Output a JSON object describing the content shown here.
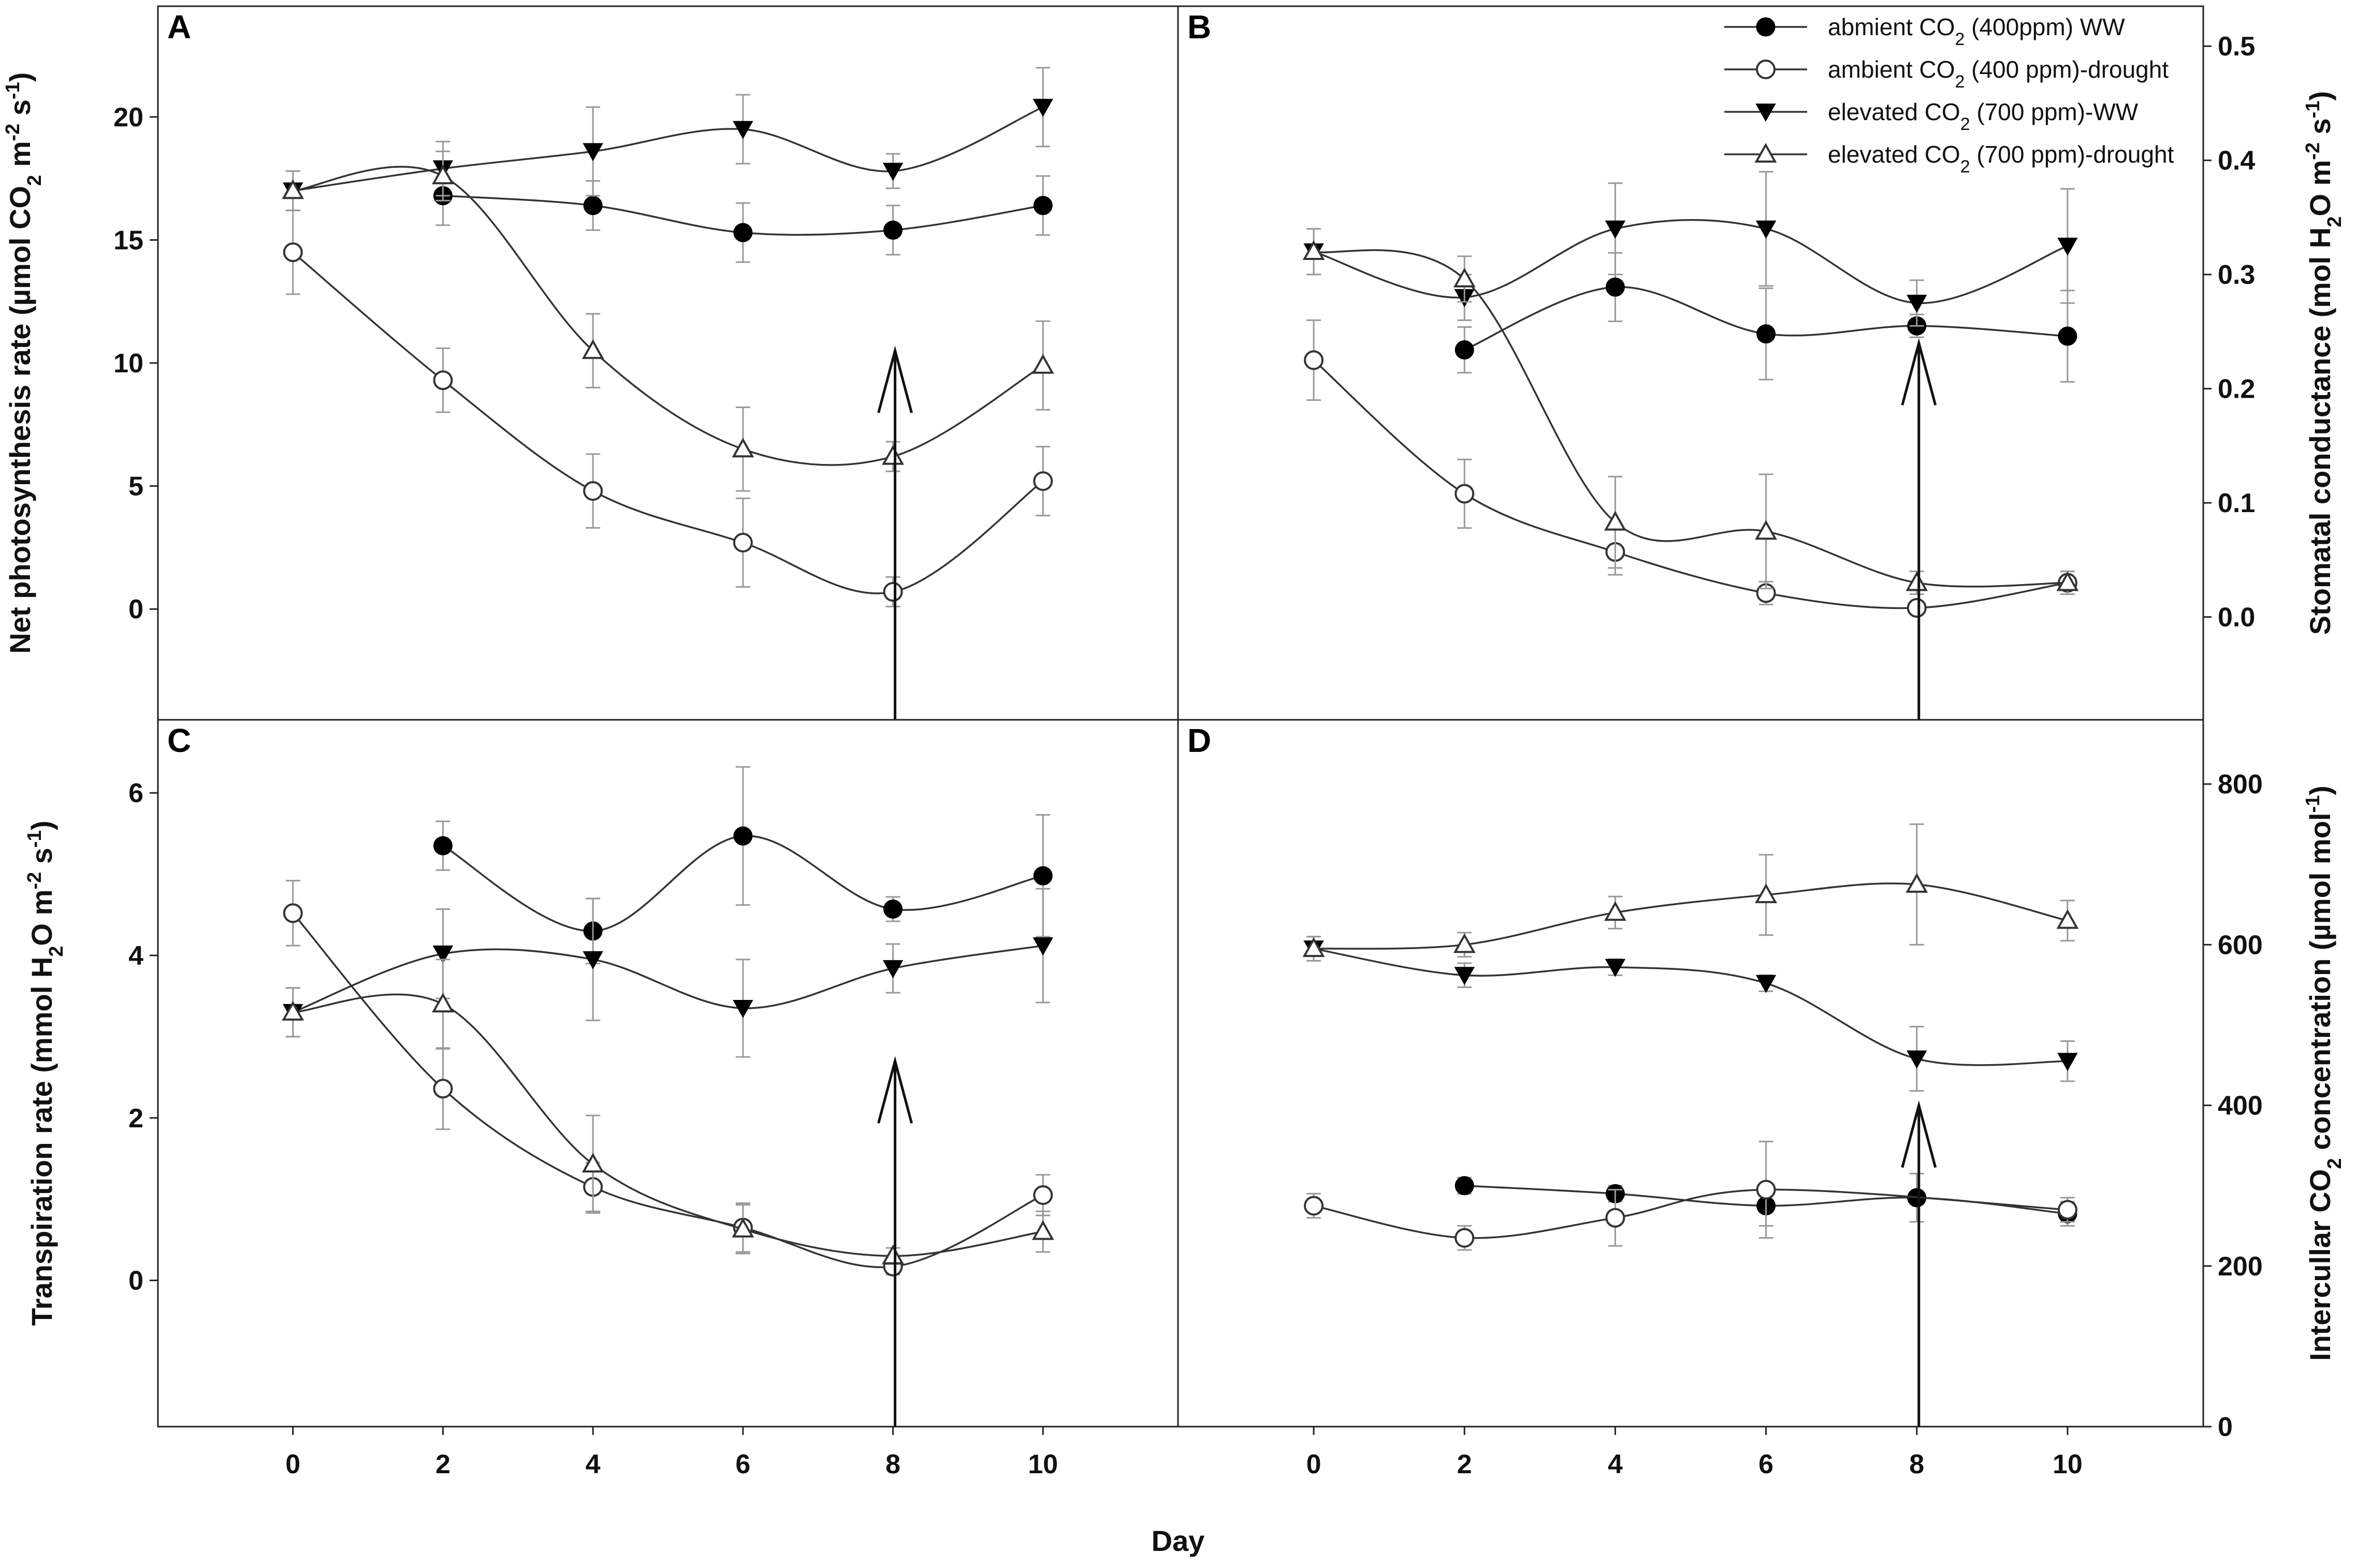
{
  "figure": {
    "shared_xlabel": "Day",
    "legend": [
      {
        "marker": "filled-circle",
        "parts": [
          "abmient CO",
          "2",
          " (400ppm) WW"
        ]
      },
      {
        "marker": "open-circle",
        "parts": [
          "ambient CO",
          "2",
          " (400 ppm)-drought"
        ]
      },
      {
        "marker": "filled-triangle-down",
        "parts": [
          "elevated CO",
          "2",
          " (700 ppm)-WW"
        ]
      },
      {
        "marker": "open-triangle-up",
        "parts": [
          "elevated CO",
          "2",
          " (700 ppm)-drought"
        ]
      }
    ],
    "colors": {
      "line": "#333333",
      "error": "#999999",
      "frame": "#222222",
      "arrow": "#111111"
    }
  },
  "chart_data": [
    {
      "panel": "A",
      "type": "line",
      "ylabel_parts": [
        "Net photosynthesis rate (µmol CO",
        "2",
        " m",
        "-2",
        " s",
        "-1",
        ")"
      ],
      "ylabel_side": "left",
      "x": [
        0,
        2,
        4,
        6,
        8,
        10
      ],
      "xlim": [
        -1.8,
        11.8
      ],
      "ylim": [
        -4.5,
        24.5
      ],
      "yticks": [
        0,
        5,
        10,
        15,
        20
      ],
      "xticks": [],
      "arrow_day": 8,
      "arrow_from": -4.5,
      "arrow_to": 10.5,
      "series": [
        {
          "name": "abmient CO2 (400ppm) WW",
          "marker": "filled-circle",
          "values": [
            null,
            16.8,
            16.4,
            15.3,
            15.4,
            16.4
          ],
          "errors": [
            null,
            1.2,
            1.0,
            1.2,
            1.0,
            1.2
          ]
        },
        {
          "name": "ambient CO2 (400 ppm)-drought",
          "marker": "open-circle",
          "values": [
            14.5,
            9.3,
            4.8,
            2.7,
            0.7,
            5.2
          ],
          "errors": [
            1.7,
            1.3,
            1.5,
            1.8,
            0.6,
            1.4
          ]
        },
        {
          "name": "elevated CO2 (700 ppm)-WW",
          "marker": "filled-triangle-down",
          "values": [
            17.0,
            17.9,
            18.6,
            19.5,
            17.8,
            20.4
          ],
          "errors": [
            0.8,
            1.1,
            1.8,
            1.4,
            0.7,
            1.6
          ]
        },
        {
          "name": "elevated CO2 (700 ppm)-drought",
          "marker": "open-triangle-up",
          "values": [
            17.0,
            17.6,
            10.5,
            6.5,
            6.2,
            9.9
          ],
          "errors": [
            0.8,
            1.0,
            1.5,
            1.7,
            0.6,
            1.8
          ]
        }
      ]
    },
    {
      "panel": "B",
      "type": "line",
      "ylabel_parts": [
        "Stomatal conductance (mol H",
        "2",
        "O m",
        "-2",
        " s",
        "-1",
        ")"
      ],
      "ylabel_side": "right",
      "x": [
        0,
        2,
        4,
        6,
        8,
        10
      ],
      "xlim": [
        -1.8,
        11.8
      ],
      "ylim": [
        -0.09,
        0.535
      ],
      "yticks": [
        0.0,
        0.1,
        0.2,
        0.3,
        0.4,
        0.5
      ],
      "ytick_labels": [
        "0.0",
        "0.1",
        "0.2",
        "0.3",
        "0.4",
        "0.5"
      ],
      "xticks": [],
      "arrow_day": 8,
      "arrow_from": -0.09,
      "arrow_to": 0.24,
      "series": [
        {
          "name": "abmient CO2 (400ppm) WW",
          "marker": "filled-circle",
          "values": [
            null,
            0.234,
            0.289,
            0.248,
            0.255,
            0.246
          ],
          "errors": [
            null,
            0.02,
            0.03,
            0.04,
            0.01,
            0.04
          ]
        },
        {
          "name": "ambient CO2 (400 ppm)-drought",
          "marker": "open-circle",
          "values": [
            0.225,
            0.108,
            0.057,
            0.021,
            0.008,
            0.03
          ],
          "errors": [
            0.035,
            0.03,
            0.02,
            0.01,
            0.005,
            0.01
          ]
        },
        {
          "name": "elevated CO2 (700 ppm)-WW",
          "marker": "filled-triangle-down",
          "values": [
            0.32,
            0.28,
            0.34,
            0.34,
            0.275,
            0.325
          ],
          "errors": [
            0.02,
            0.02,
            0.04,
            0.05,
            0.02,
            0.05
          ]
        },
        {
          "name": "elevated CO2 (700 ppm)-drought",
          "marker": "open-triangle-up",
          "values": [
            0.32,
            0.296,
            0.083,
            0.075,
            0.03,
            0.03
          ],
          "errors": [
            0.02,
            0.02,
            0.04,
            0.05,
            0.01,
            0.01
          ]
        }
      ]
    },
    {
      "panel": "C",
      "type": "line",
      "ylabel_parts": [
        "Transpiration rate (mmol H",
        "2",
        "O m",
        "-2",
        " s",
        "-1",
        ")"
      ],
      "ylabel_side": "left",
      "x": [
        0,
        2,
        4,
        6,
        8,
        10
      ],
      "xlim": [
        -1.8,
        11.8
      ],
      "ylim": [
        -1.8,
        6.9
      ],
      "yticks": [
        0,
        2,
        4,
        6
      ],
      "xticks": [
        0,
        2,
        4,
        6,
        8,
        10
      ],
      "arrow_day": 8,
      "arrow_from": -1.8,
      "arrow_to": 2.7,
      "series": [
        {
          "name": "abmient CO2 (400ppm) WW",
          "marker": "filled-circle",
          "values": [
            null,
            5.35,
            4.3,
            5.47,
            4.57,
            4.98
          ],
          "errors": [
            null,
            0.3,
            0.4,
            0.85,
            0.15,
            0.75
          ]
        },
        {
          "name": "ambient CO2 (400 ppm)-drought",
          "marker": "open-circle",
          "values": [
            4.52,
            2.36,
            1.15,
            0.65,
            0.17,
            1.05
          ],
          "errors": [
            0.4,
            0.5,
            0.3,
            0.3,
            0.1,
            0.25
          ]
        },
        {
          "name": "elevated CO2 (700 ppm)-WW",
          "marker": "filled-triangle-down",
          "values": [
            3.3,
            4.02,
            3.95,
            3.35,
            3.84,
            4.12
          ],
          "errors": [
            0.3,
            0.55,
            0.75,
            0.6,
            0.3,
            0.7
          ]
        },
        {
          "name": "elevated CO2 (700 ppm)-drought",
          "marker": "open-triangle-up",
          "values": [
            3.3,
            3.4,
            1.43,
            0.63,
            0.3,
            0.6
          ],
          "errors": [
            0.3,
            0.55,
            0.6,
            0.3,
            0.1,
            0.25
          ]
        }
      ]
    },
    {
      "panel": "D",
      "type": "line",
      "ylabel_parts": [
        "Intercullar CO",
        "2",
        " concentration (µmol mol",
        "-1",
        ")"
      ],
      "ylabel_side": "right",
      "x": [
        0,
        2,
        4,
        6,
        8,
        10
      ],
      "xlim": [
        -1.8,
        11.8
      ],
      "ylim": [
        0,
        880
      ],
      "yticks": [
        0,
        200,
        400,
        600,
        800
      ],
      "xticks": [
        0,
        2,
        4,
        6,
        8,
        10
      ],
      "arrow_day": 8,
      "arrow_from": 0,
      "arrow_to": 400,
      "series": [
        {
          "name": "abmient CO2 (400ppm) WW",
          "marker": "filled-circle",
          "values": [
            null,
            300,
            290,
            275,
            285,
            265
          ],
          "errors": [
            null,
            10,
            10,
            25,
            30,
            15
          ]
        },
        {
          "name": "ambient CO2 (400 ppm)-drought",
          "marker": "open-circle",
          "values": [
            275,
            235,
            260,
            295,
            null,
            270
          ],
          "errors": [
            15,
            15,
            35,
            60,
            null,
            15
          ]
        },
        {
          "name": "elevated CO2 (700 ppm)-WW",
          "marker": "filled-triangle-down",
          "values": [
            595,
            562,
            572,
            552,
            458,
            455
          ],
          "errors": [
            15,
            15,
            10,
            10,
            40,
            25
          ]
        },
        {
          "name": "elevated CO2 (700 ppm)-drought",
          "marker": "open-triangle-up",
          "values": [
            595,
            600,
            640,
            662,
            675,
            630
          ],
          "errors": [
            15,
            15,
            20,
            50,
            75,
            25
          ]
        }
      ]
    }
  ]
}
